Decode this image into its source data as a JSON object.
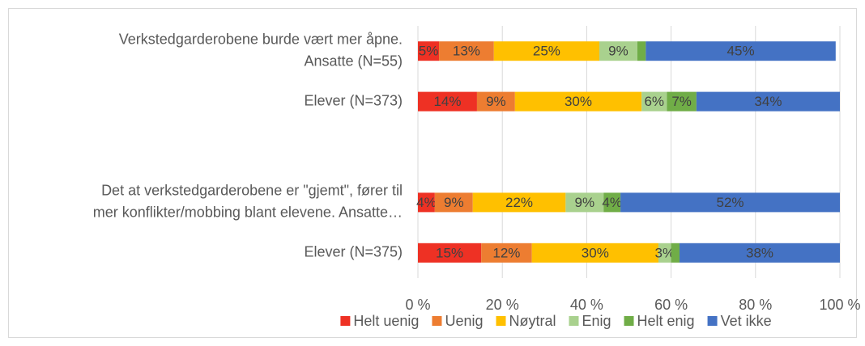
{
  "chart_data": {
    "type": "stacked_bar_horizontal",
    "categories": [
      [
        "Verkstedgarderobene burde vært mer åpne.",
        "Ansatte (N=55)"
      ],
      [
        "Elever (N=373)"
      ],
      null,
      [
        "Det at verkstedgarderobene er \"gjemt\", fører til",
        "mer konflikter/mobbing blant elevene. Ansatte…"
      ],
      [
        "Elever (N=375)"
      ]
    ],
    "series": [
      {
        "name": "Helt uenig",
        "color": "#ee3124",
        "values": [
          5,
          14,
          null,
          4,
          15
        ],
        "value_labels": [
          "5%",
          "14%",
          null,
          "4%",
          "15%"
        ]
      },
      {
        "name": "Uenig",
        "color": "#ed7d31",
        "values": [
          13,
          9,
          null,
          9,
          12
        ],
        "value_labels": [
          "13%",
          "9%",
          null,
          "9%",
          "12%"
        ]
      },
      {
        "name": "Nøytral",
        "color": "#ffc000",
        "values": [
          25,
          30,
          null,
          22,
          30
        ],
        "value_labels": [
          "25%",
          "30%",
          null,
          "22%",
          "30%"
        ]
      },
      {
        "name": "Enig",
        "color": "#a9d18e",
        "values": [
          9,
          6,
          null,
          9,
          3
        ],
        "value_labels": [
          "9%",
          "6%",
          null,
          "9%",
          "3%"
        ]
      },
      {
        "name": "Helt enig",
        "color": "#70ad47",
        "values": [
          2,
          7,
          null,
          4,
          2
        ],
        "value_labels": [
          null,
          "7%",
          null,
          "4%",
          null
        ]
      },
      {
        "name": "Vet ikke",
        "color": "#4472c4",
        "values": [
          45,
          34,
          null,
          52,
          38
        ],
        "value_labels": [
          "45%",
          "34%",
          null,
          "52%",
          "38%"
        ]
      }
    ],
    "xlim": [
      0,
      100
    ],
    "xticks": [
      {
        "value": 0,
        "label": "0 %"
      },
      {
        "value": 20,
        "label": "20 %"
      },
      {
        "value": 40,
        "label": "40 %"
      },
      {
        "value": 60,
        "label": "60 %"
      },
      {
        "value": 80,
        "label": "80 %"
      },
      {
        "value": 100,
        "label": "100 %"
      }
    ],
    "grid": true,
    "legend": "bottom"
  }
}
